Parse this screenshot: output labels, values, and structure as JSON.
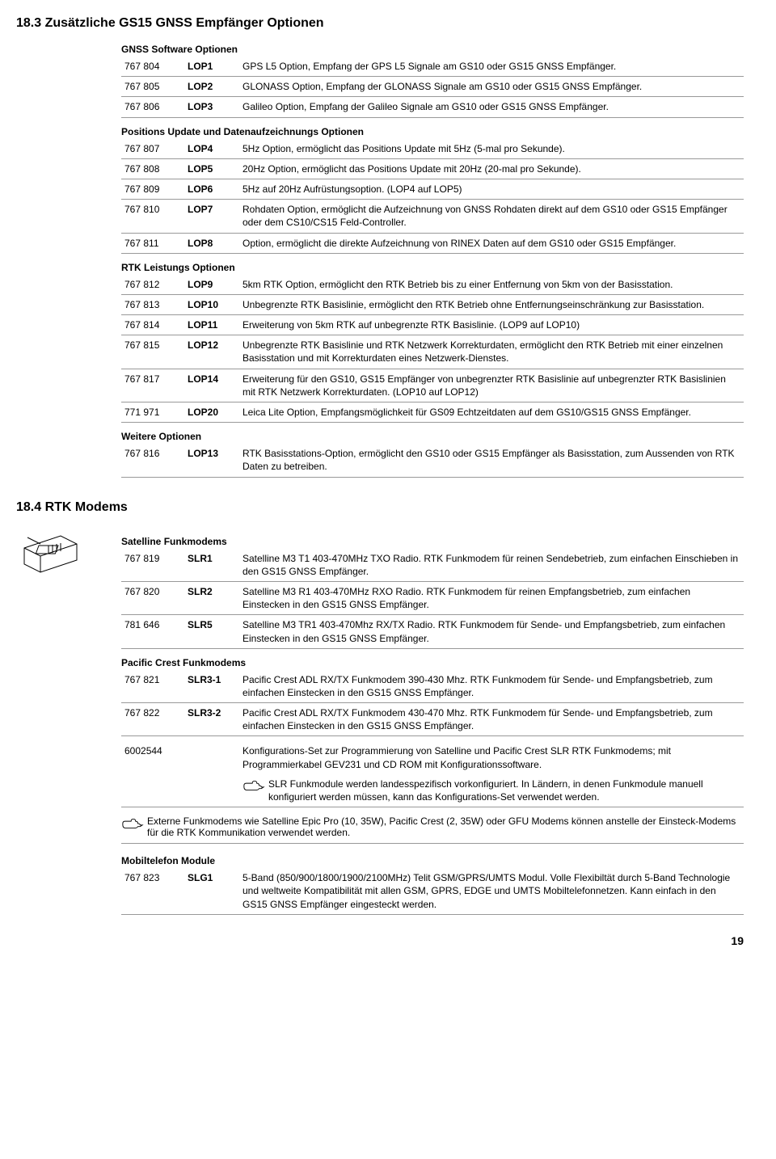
{
  "section1": {
    "title": "18.3 Zusätzliche GS15 GNSS Empfänger Optionen",
    "gnss_sw": {
      "title": "GNSS Software Optionen",
      "rows": [
        {
          "id": "767 804",
          "code": "LOP1",
          "desc": "GPS L5 Option, Empfang der GPS L5 Signale am GS10 oder GS15 GNSS Empfänger."
        },
        {
          "id": "767 805",
          "code": "LOP2",
          "desc": "GLONASS Option, Empfang der GLONASS Signale am GS10 oder GS15 GNSS Empfänger."
        },
        {
          "id": "767 806",
          "code": "LOP3",
          "desc": "Galileo Option, Empfang der Galileo Signale am GS10 oder GS15 GNSS Empfänger."
        }
      ]
    },
    "positions": {
      "title": "Positions Update und Datenaufzeichnungs Optionen",
      "rows": [
        {
          "id": "767 807",
          "code": "LOP4",
          "desc": "5Hz Option, ermöglicht das Positions Update mit 5Hz (5-mal pro Sekunde)."
        },
        {
          "id": "767 808",
          "code": "LOP5",
          "desc": "20Hz Option, ermöglicht das Positions Update mit 20Hz (20-mal pro Sekunde)."
        },
        {
          "id": "767 809",
          "code": "LOP6",
          "desc": "5Hz auf 20Hz Aufrüstungsoption. (LOP4 auf LOP5)"
        },
        {
          "id": "767 810",
          "code": "LOP7",
          "desc": "Rohdaten Option, ermöglicht die Aufzeichnung von GNSS Rohdaten direkt auf dem GS10 oder GS15 Empfänger oder dem CS10/CS15 Feld-Controller."
        },
        {
          "id": "767 811",
          "code": "LOP8",
          "desc": "Option, ermöglicht die direkte Aufzeichnung von RINEX Daten auf dem GS10 oder GS15 Empfänger."
        }
      ]
    },
    "rtk": {
      "title": "RTK Leistungs Optionen",
      "rows": [
        {
          "id": "767 812",
          "code": "LOP9",
          "desc": "5km RTK Option, ermöglicht den RTK Betrieb bis zu einer Entfernung von 5km von der Basisstation."
        },
        {
          "id": "767 813",
          "code": "LOP10",
          "desc": "Unbegrenzte RTK Basislinie, ermöglicht den RTK Betrieb ohne Entfernungseinschränkung zur Basisstation."
        },
        {
          "id": "767 814",
          "code": "LOP11",
          "desc": "Erweiterung von 5km RTK auf unbegrenzte RTK Basislinie. (LOP9 auf LOP10)"
        },
        {
          "id": "767 815",
          "code": "LOP12",
          "desc": "Unbegrenzte RTK Basislinie und RTK Netzwerk Korrekturdaten, ermöglicht den RTK Betrieb mit einer einzelnen Basisstation und mit Korrekturdaten eines Netzwerk-Dienstes."
        },
        {
          "id": "767 817",
          "code": "LOP14",
          "desc": "Erweiterung für den GS10, GS15 Empfänger von unbegrenzter RTK Basislinie auf unbegrenzter RTK Basislinien mit RTK Netzwerk Korrekturdaten. (LOP10 auf LOP12)"
        },
        {
          "id": "771 971",
          "code": "LOP20",
          "desc": "Leica Lite Option, Empfangsmöglichkeit für GS09 Echtzeitdaten auf dem GS10/GS15 GNSS Empfänger."
        }
      ]
    },
    "weitere": {
      "title": "Weitere Optionen",
      "rows": [
        {
          "id": "767 816",
          "code": "LOP13",
          "desc": "RTK Basisstations-Option, ermöglicht den GS10 oder GS15 Empfänger als Basisstation, zum Aussenden von RTK Daten zu betreiben."
        }
      ]
    }
  },
  "section2": {
    "title": "18.4 RTK Modems",
    "satelline": {
      "title": "Satelline Funkmodems",
      "rows": [
        {
          "id": "767 819",
          "code": "SLR1",
          "desc": "Satelline M3 T1 403-470MHz TXO Radio. RTK Funkmodem für reinen Sendebetrieb, zum einfachen Einschieben in den GS15 GNSS Empfänger."
        },
        {
          "id": "767 820",
          "code": "SLR2",
          "desc": "Satelline M3 R1 403-470MHz RXO Radio. RTK Funkmodem für reinen Empfangsbetrieb, zum einfachen Einstecken in den GS15 GNSS Empfänger."
        },
        {
          "id": "781 646",
          "code": "SLR5",
          "desc": "Satelline M3 TR1 403-470Mhz RX/TX Radio. RTK Funkmodem für Sende- und Empfangsbetrieb, zum einfachen Einstecken in den GS15 GNSS Empfänger."
        }
      ]
    },
    "pacific": {
      "title": "Pacific Crest Funkmodems",
      "rows": [
        {
          "id": "767 821",
          "code": "SLR3-1",
          "desc": "Pacific Crest ADL RX/TX Funkmodem 390-430 Mhz. RTK Funkmodem für Sende- und Empfangsbetrieb, zum einfachen Einstecken in den GS15 GNSS Empfänger."
        },
        {
          "id": "767 822",
          "code": "SLR3-2",
          "desc": "Pacific Crest ADL RX/TX Funkmodem 430-470 Mhz. RTK Funkmodem für Sende- und Empfangsbetrieb, zum einfachen Einstecken in den GS15 GNSS Empfänger."
        }
      ]
    },
    "config": {
      "id": "6002544",
      "desc": "Konfigurations-Set zur Programmierung von Satelline und Pacific Crest SLR RTK Funkmodems; mit Programmierkabel GEV231 und CD ROM mit Konfigurationssoftware.",
      "note": "SLR Funkmodule werden landesspezifisch vorkonfiguriert. In Ländern, in denen Funkmodule manuell konfiguriert werden müssen, kann das Konfigurations-Set verwendet werden."
    },
    "external_note": "Externe Funkmodems wie Satelline Epic Pro (10, 35W), Pacific Crest (2, 35W) oder GFU Modems können anstelle der Einsteck-Modems für die RTK Kommunikation verwendet werden.",
    "mobil": {
      "title": "Mobiltelefon Module",
      "rows": [
        {
          "id": "767 823",
          "code": "SLG1",
          "desc": "5-Band (850/900/1800/1900/2100MHz) Telit GSM/GPRS/UMTS Modul. Volle Flexibiltät durch 5-Band Technologie und weltweite Kompatibilität mit allen GSM, GPRS, EDGE und UMTS Mobiltelefonnetzen. Kann einfach in den GS15 GNSS Empfänger eingesteckt werden."
        }
      ]
    }
  },
  "page_num": "19"
}
